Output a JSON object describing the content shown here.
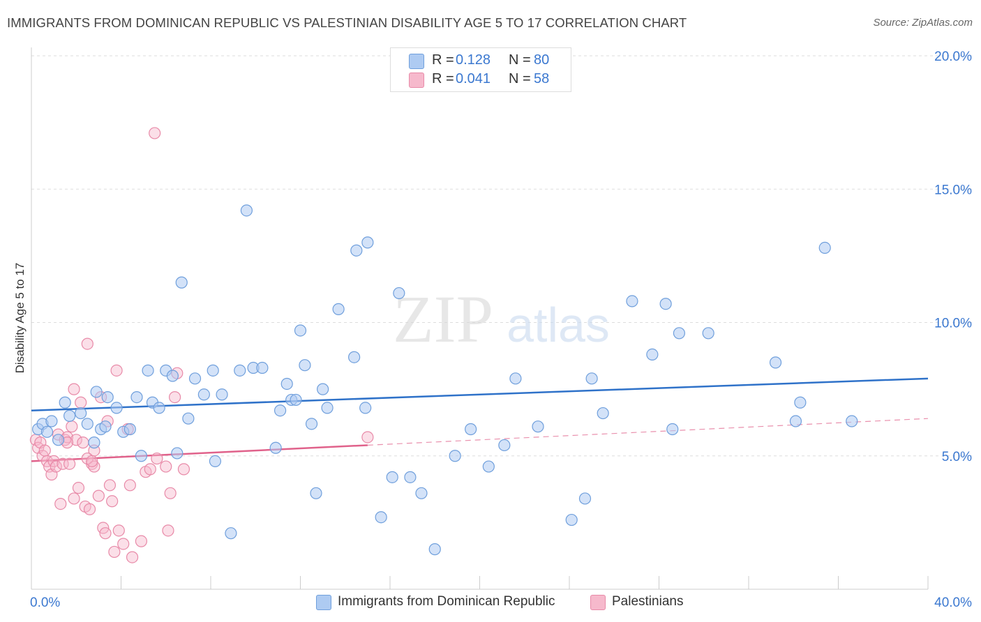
{
  "title": "IMMIGRANTS FROM DOMINICAN REPUBLIC VS PALESTINIAN DISABILITY AGE 5 TO 17 CORRELATION CHART",
  "source": "Source: ZipAtlas.com",
  "watermark": {
    "zip": "ZIP",
    "atlas": "atlas"
  },
  "legend": {
    "series1": {
      "r_label": "R =",
      "r_value": "0.128",
      "n_label": "N =",
      "n_value": "80"
    },
    "series2": {
      "r_label": "R =",
      "r_value": "0.041",
      "n_label": "N =",
      "n_value": "58"
    }
  },
  "bottom_legend": {
    "series1": "Immigrants from Dominican Republic",
    "series2": "Palestinians"
  },
  "colors": {
    "blue_fill": "#aecbf2",
    "blue_stroke": "#6f9fdc",
    "blue_line": "#2f72c9",
    "pink_fill": "#f6b9cc",
    "pink_stroke": "#e88aa8",
    "pink_line": "#e0628b",
    "tick_label": "#3b78d0",
    "grid": "#dddddd"
  },
  "chart_data": {
    "type": "scatter",
    "title": "IMMIGRANTS FROM DOMINICAN REPUBLIC VS PALESTINIAN DISABILITY AGE 5 TO 17 CORRELATION CHART",
    "xlabel": "",
    "ylabel": "Disability Age 5 to 17",
    "xlim": [
      0,
      40
    ],
    "ylim": [
      0,
      20
    ],
    "x_tick_labels": [
      "0.0%",
      "40.0%"
    ],
    "y_ticks": [
      5,
      10,
      15,
      20
    ],
    "y_tick_labels": [
      "5.0%",
      "10.0%",
      "15.0%",
      "20.0%"
    ],
    "grid": true,
    "legend_position": "top-center",
    "series": [
      {
        "name": "Immigrants from Dominican Republic",
        "color": "#aecbf2",
        "trend": {
          "x": [
            0,
            40
          ],
          "y": [
            6.7,
            7.9
          ]
        },
        "points": [
          [
            0.3,
            6.0
          ],
          [
            0.5,
            6.2
          ],
          [
            0.7,
            5.9
          ],
          [
            0.9,
            6.3
          ],
          [
            1.2,
            5.6
          ],
          [
            1.5,
            7.0
          ],
          [
            1.7,
            6.5
          ],
          [
            2.2,
            6.6
          ],
          [
            2.5,
            6.2
          ],
          [
            2.8,
            5.5
          ],
          [
            2.9,
            7.4
          ],
          [
            3.1,
            6.0
          ],
          [
            3.4,
            7.2
          ],
          [
            3.8,
            6.8
          ],
          [
            4.1,
            5.9
          ],
          [
            4.4,
            6.0
          ],
          [
            4.7,
            7.2
          ],
          [
            4.9,
            5.0
          ],
          [
            5.2,
            8.2
          ],
          [
            5.4,
            7.0
          ],
          [
            5.7,
            6.8
          ],
          [
            6.0,
            8.2
          ],
          [
            6.3,
            8.0
          ],
          [
            6.5,
            5.1
          ],
          [
            6.7,
            11.5
          ],
          [
            7.0,
            6.4
          ],
          [
            7.3,
            7.9
          ],
          [
            7.7,
            7.3
          ],
          [
            8.1,
            8.2
          ],
          [
            8.2,
            4.8
          ],
          [
            8.5,
            7.3
          ],
          [
            8.9,
            2.1
          ],
          [
            9.3,
            8.2
          ],
          [
            9.6,
            14.2
          ],
          [
            9.9,
            8.3
          ],
          [
            10.3,
            8.3
          ],
          [
            10.9,
            5.3
          ],
          [
            11.1,
            6.7
          ],
          [
            11.4,
            7.7
          ],
          [
            11.6,
            7.1
          ],
          [
            12.0,
            9.7
          ],
          [
            12.2,
            8.4
          ],
          [
            12.5,
            6.2
          ],
          [
            12.7,
            3.6
          ],
          [
            13.0,
            7.5
          ],
          [
            13.2,
            6.8
          ],
          [
            13.7,
            10.5
          ],
          [
            14.4,
            8.7
          ],
          [
            14.5,
            12.7
          ],
          [
            14.9,
            6.8
          ],
          [
            15.0,
            13.0
          ],
          [
            15.6,
            2.7
          ],
          [
            16.1,
            4.2
          ],
          [
            16.4,
            11.1
          ],
          [
            16.9,
            4.2
          ],
          [
            17.4,
            3.6
          ],
          [
            18.0,
            1.5
          ],
          [
            18.9,
            5.0
          ],
          [
            19.6,
            6.0
          ],
          [
            20.4,
            4.6
          ],
          [
            21.1,
            5.4
          ],
          [
            21.6,
            7.9
          ],
          [
            22.6,
            6.1
          ],
          [
            24.1,
            2.6
          ],
          [
            24.7,
            3.4
          ],
          [
            25.0,
            7.9
          ],
          [
            25.5,
            6.6
          ],
          [
            26.8,
            10.8
          ],
          [
            27.7,
            8.8
          ],
          [
            28.3,
            10.7
          ],
          [
            28.6,
            6.0
          ],
          [
            28.9,
            9.6
          ],
          [
            30.2,
            9.6
          ],
          [
            33.2,
            8.5
          ],
          [
            34.1,
            6.3
          ],
          [
            34.3,
            7.0
          ],
          [
            35.4,
            12.8
          ],
          [
            36.6,
            6.3
          ],
          [
            11.8,
            7.1
          ],
          [
            3.3,
            6.1
          ]
        ]
      },
      {
        "name": "Palestinians",
        "color": "#f6b9cc",
        "trend": {
          "x": [
            0,
            15
          ],
          "y": [
            4.8,
            5.4
          ]
        },
        "trend_dashed": {
          "x": [
            15,
            40
          ],
          "y": [
            5.4,
            6.4
          ]
        },
        "points": [
          [
            0.2,
            5.6
          ],
          [
            0.3,
            5.3
          ],
          [
            0.4,
            5.5
          ],
          [
            0.5,
            5.0
          ],
          [
            0.6,
            5.2
          ],
          [
            0.7,
            4.8
          ],
          [
            0.8,
            4.6
          ],
          [
            0.9,
            4.3
          ],
          [
            1.0,
            4.8
          ],
          [
            1.1,
            4.6
          ],
          [
            1.2,
            5.8
          ],
          [
            1.3,
            3.2
          ],
          [
            1.4,
            4.7
          ],
          [
            1.5,
            5.6
          ],
          [
            1.6,
            5.7
          ],
          [
            1.7,
            4.7
          ],
          [
            1.8,
            6.1
          ],
          [
            1.9,
            7.5
          ],
          [
            1.9,
            3.4
          ],
          [
            2.0,
            5.6
          ],
          [
            2.1,
            3.8
          ],
          [
            2.2,
            7.0
          ],
          [
            2.3,
            5.5
          ],
          [
            2.4,
            3.1
          ],
          [
            2.5,
            9.2
          ],
          [
            2.6,
            3.0
          ],
          [
            2.7,
            4.7
          ],
          [
            2.8,
            4.6
          ],
          [
            2.8,
            5.2
          ],
          [
            3.0,
            3.5
          ],
          [
            3.1,
            7.2
          ],
          [
            3.2,
            2.3
          ],
          [
            3.3,
            2.1
          ],
          [
            3.4,
            6.3
          ],
          [
            3.5,
            3.9
          ],
          [
            3.6,
            3.3
          ],
          [
            3.7,
            1.4
          ],
          [
            3.8,
            8.2
          ],
          [
            3.9,
            2.2
          ],
          [
            4.1,
            1.7
          ],
          [
            4.3,
            6.0
          ],
          [
            4.4,
            3.9
          ],
          [
            4.5,
            1.2
          ],
          [
            4.9,
            1.8
          ],
          [
            5.1,
            4.4
          ],
          [
            5.3,
            4.5
          ],
          [
            5.5,
            17.1
          ],
          [
            5.6,
            4.9
          ],
          [
            6.0,
            4.6
          ],
          [
            6.1,
            2.2
          ],
          [
            6.2,
            3.6
          ],
          [
            6.5,
            8.1
          ],
          [
            6.4,
            7.2
          ],
          [
            6.8,
            4.5
          ],
          [
            2.5,
            4.9
          ],
          [
            2.7,
            4.8
          ],
          [
            1.6,
            5.5
          ],
          [
            15.0,
            5.7
          ]
        ]
      }
    ]
  }
}
